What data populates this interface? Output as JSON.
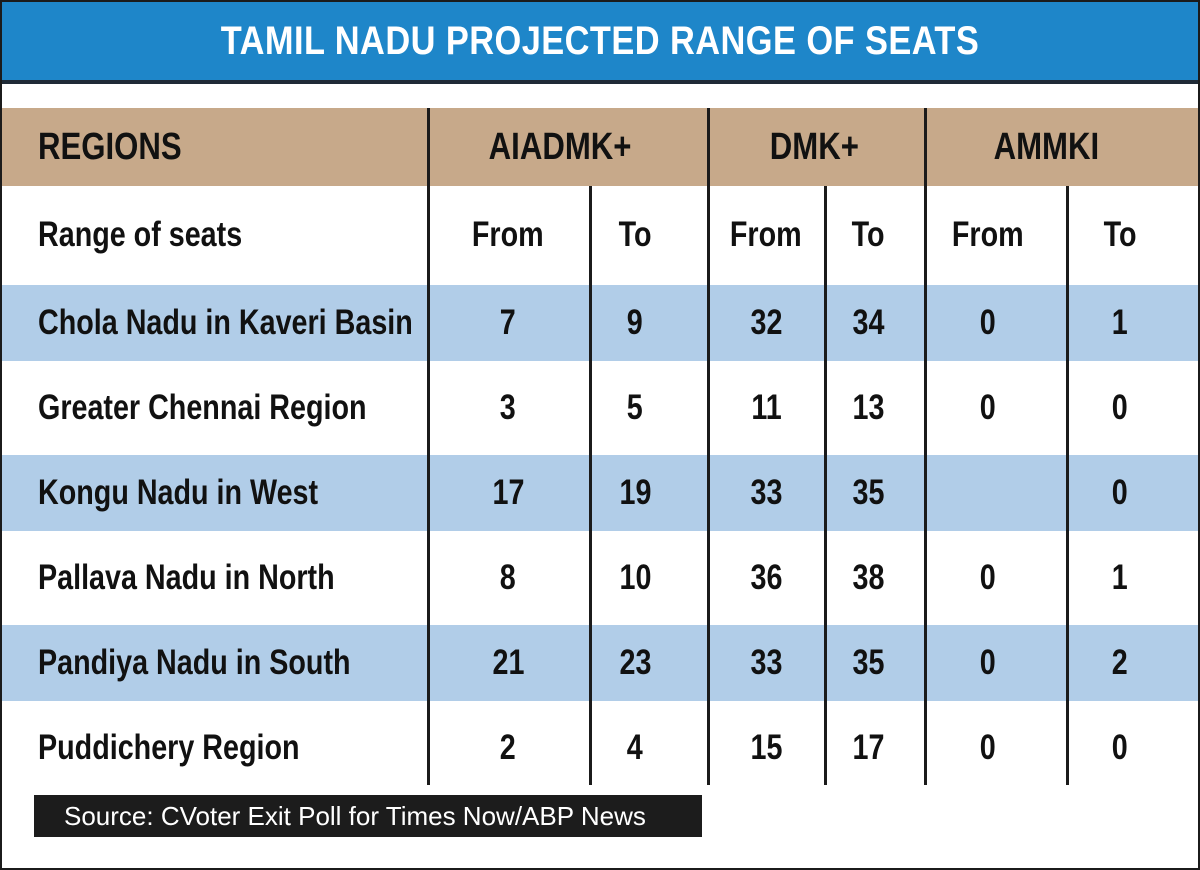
{
  "title": "TAMIL NADU PROJECTED RANGE OF SEATS",
  "source": "Source: CVoter Exit Poll for Times Now/ABP News",
  "colors": {
    "title_bar": "#1e86c9",
    "header_band": "#c7a98a",
    "row_highlight": "#b1cde8",
    "source_box": "#1c1c1c"
  },
  "chart_data": {
    "type": "table",
    "title": "TAMIL NADU PROJECTED RANGE OF SEATS",
    "header": {
      "first": "REGIONS",
      "groups": [
        "AIADMK+",
        "DMK+",
        "AMMKI"
      ]
    },
    "subheader": {
      "label": "Range of seats",
      "columns": [
        "From",
        "To",
        "From",
        "To",
        "From",
        "To"
      ]
    },
    "rows": [
      {
        "region": "Chola Nadu in Kaveri Basin",
        "values": [
          "7",
          "9",
          "32",
          "34",
          "0",
          "1"
        ]
      },
      {
        "region": "Greater Chennai Region",
        "values": [
          "3",
          "5",
          "11",
          "13",
          "0",
          "0"
        ]
      },
      {
        "region": "Kongu Nadu in West",
        "values": [
          "17",
          "19",
          "33",
          "35",
          "",
          "0"
        ]
      },
      {
        "region": "Pallava Nadu in North",
        "values": [
          "8",
          "10",
          "36",
          "38",
          "0",
          "1"
        ]
      },
      {
        "region": "Pandiya Nadu in South",
        "values": [
          "21",
          "23",
          "33",
          "35",
          "0",
          "2"
        ]
      },
      {
        "region": "Puddichery Region",
        "values": [
          "2",
          "4",
          "15",
          "17",
          "0",
          "0"
        ]
      }
    ]
  }
}
